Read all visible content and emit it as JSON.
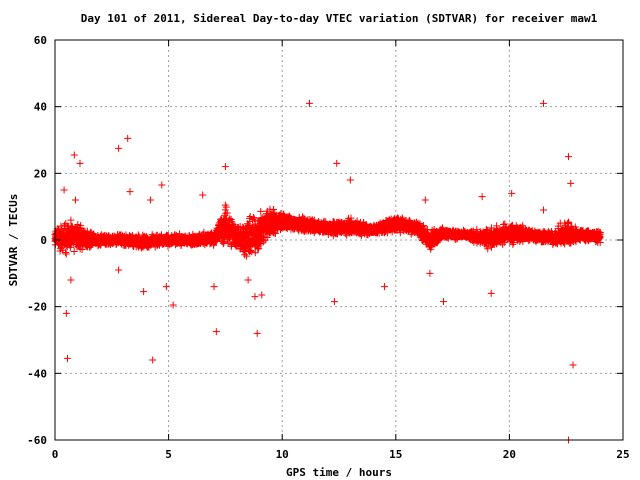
{
  "chart_data": {
    "type": "scatter",
    "title": "Day 101 of 2011, Sidereal Day-to-day VTEC variation (SDTVAR) for receiver maw1",
    "xlabel": "GPS time / hours",
    "ylabel": "SDTVAR / TECUs",
    "xlim": [
      0,
      25
    ],
    "ylim": [
      -60,
      60
    ],
    "xticks": [
      0,
      5,
      10,
      15,
      20,
      25
    ],
    "yticks": [
      -60,
      -40,
      -20,
      0,
      20,
      40,
      60
    ],
    "grid": true,
    "marker": "+",
    "color": "#ff0000",
    "series": [
      {
        "name": "SDTVAR",
        "band": [
          [
            0.0,
            -3,
            4
          ],
          [
            0.5,
            -5,
            7
          ],
          [
            1.0,
            -4,
            6
          ],
          [
            1.5,
            -3,
            3
          ],
          [
            2.0,
            -2,
            2
          ],
          [
            3.0,
            -2,
            2
          ],
          [
            4.0,
            -3,
            2
          ],
          [
            5.0,
            -2,
            2
          ],
          [
            6.0,
            -2,
            2
          ],
          [
            7.0,
            -2,
            3
          ],
          [
            7.5,
            -3,
            12
          ],
          [
            8.0,
            -4,
            6
          ],
          [
            8.5,
            -7,
            8
          ],
          [
            9.0,
            -5,
            10
          ],
          [
            9.5,
            0,
            11
          ],
          [
            10.0,
            2,
            9
          ],
          [
            11.0,
            2,
            7
          ],
          [
            12.0,
            1,
            6
          ],
          [
            13.0,
            1,
            7
          ],
          [
            14.0,
            1,
            5
          ],
          [
            15.0,
            2,
            8
          ],
          [
            16.0,
            1,
            6
          ],
          [
            16.5,
            -5,
            4
          ],
          [
            17.0,
            0,
            4
          ],
          [
            18.0,
            0,
            3
          ],
          [
            19.0,
            -3,
            4
          ],
          [
            20.0,
            -2,
            6
          ],
          [
            21.0,
            -1,
            4
          ],
          [
            22.0,
            -2,
            3
          ],
          [
            22.5,
            -4,
            8
          ],
          [
            23.0,
            -1,
            4
          ],
          [
            24.0,
            -1,
            3
          ]
        ],
        "outliers": [
          [
            0.4,
            15
          ],
          [
            0.5,
            -22
          ],
          [
            0.55,
            -35.5
          ],
          [
            0.85,
            25.5
          ],
          [
            1.1,
            23
          ],
          [
            0.9,
            12
          ],
          [
            0.7,
            -12
          ],
          [
            2.8,
            27.5
          ],
          [
            3.2,
            30.5
          ],
          [
            3.3,
            14.5
          ],
          [
            2.8,
            -9
          ],
          [
            3.9,
            -15.5
          ],
          [
            4.2,
            12
          ],
          [
            4.3,
            -36
          ],
          [
            4.7,
            16.5
          ],
          [
            4.9,
            -14
          ],
          [
            5.2,
            -19.5
          ],
          [
            6.5,
            13.5
          ],
          [
            7.1,
            -27.5
          ],
          [
            7.0,
            -14
          ],
          [
            7.5,
            22
          ],
          [
            8.5,
            -12
          ],
          [
            8.9,
            -28
          ],
          [
            8.8,
            -17
          ],
          [
            9.1,
            -16.5
          ],
          [
            11.2,
            41
          ],
          [
            12.4,
            23
          ],
          [
            12.3,
            -18.5
          ],
          [
            13.0,
            18
          ],
          [
            14.5,
            -14
          ],
          [
            16.3,
            12
          ],
          [
            16.5,
            -10
          ],
          [
            17.1,
            -18.5
          ],
          [
            18.8,
            13
          ],
          [
            19.2,
            -16
          ],
          [
            20.1,
            14
          ],
          [
            21.5,
            41
          ],
          [
            21.5,
            9
          ],
          [
            22.6,
            25
          ],
          [
            22.7,
            17
          ],
          [
            22.8,
            -37.5
          ],
          [
            22.6,
            -60
          ]
        ]
      }
    ]
  }
}
